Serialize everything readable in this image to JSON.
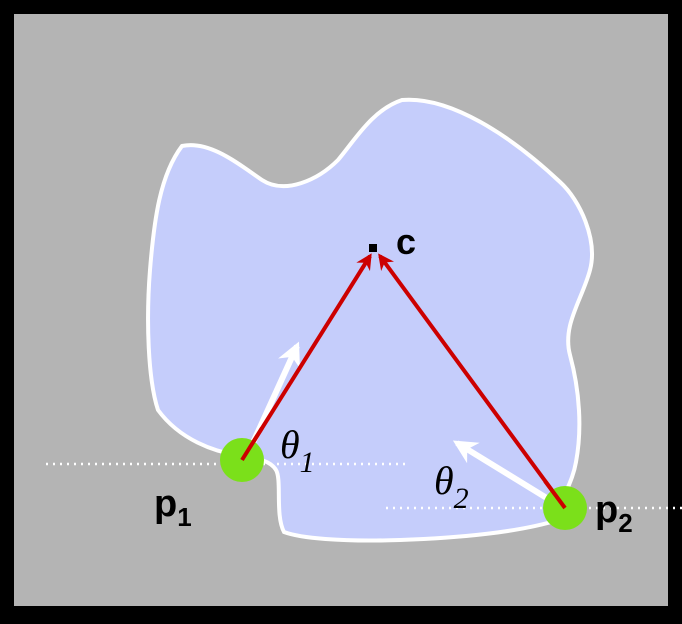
{
  "diagram": {
    "center_label": "c",
    "points": [
      {
        "id": "p1",
        "label_main": "p",
        "label_sub": "1"
      },
      {
        "id": "p2",
        "label_main": "p",
        "label_sub": "2"
      }
    ],
    "angles": [
      {
        "id": "theta1",
        "symbol": "θ",
        "sub": "1"
      },
      {
        "id": "theta2",
        "symbol": "θ",
        "sub": "2"
      }
    ],
    "colors": {
      "frame": "#000000",
      "background": "#b4b4b4",
      "blob_fill": "#c5cdfb",
      "blob_stroke": "#ffffff",
      "point_fill": "#7be01a",
      "vector_red": "#cc0000",
      "normal_white": "#ffffff",
      "baseline": "#ffffff"
    }
  }
}
